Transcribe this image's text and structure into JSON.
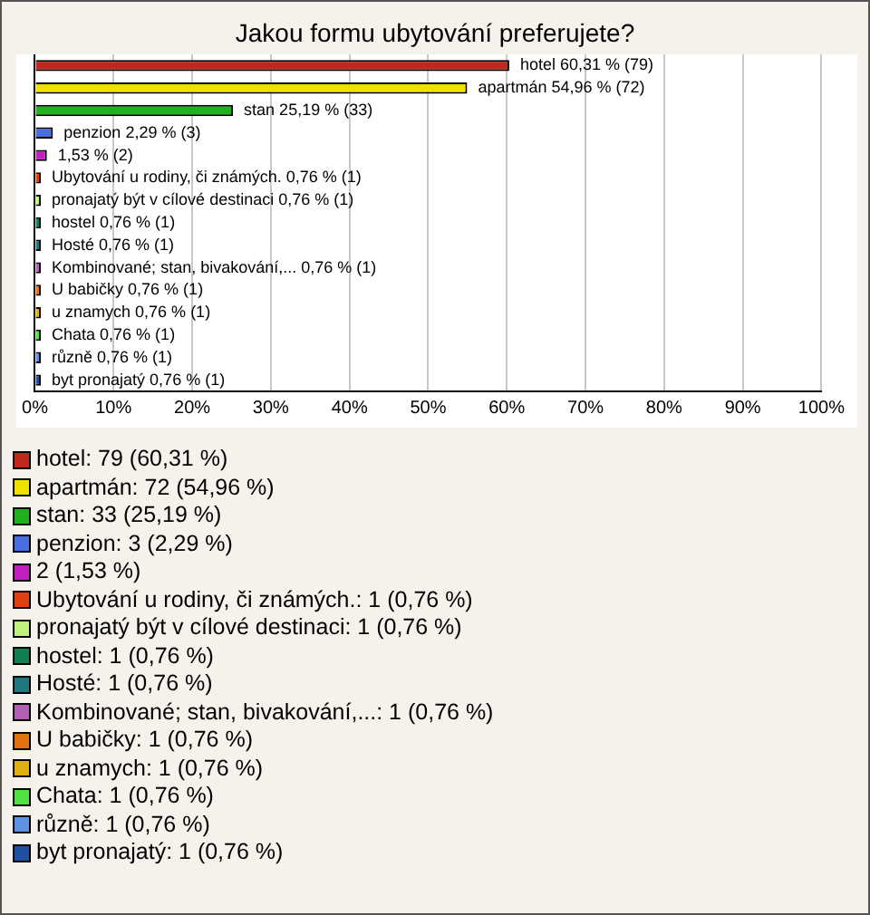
{
  "chart_data": {
    "type": "bar",
    "orientation": "horizontal",
    "stacked": true,
    "title": "Jakou formu ubytování preferujete?",
    "categories": [
      null,
      null,
      null,
      null,
      null,
      null,
      null,
      null,
      null,
      null,
      null,
      null,
      null,
      null,
      null
    ],
    "series": [
      {
        "name": "hotel: 79 (60,31 %)",
        "color": "#c0281c",
        "values": [
          60.31,
          null,
          null,
          null,
          null,
          null,
          null,
          null,
          null,
          null,
          null,
          null,
          null,
          null,
          null
        ],
        "value_labels": [
          "hotel 60,31 % (79)",
          null,
          null,
          null,
          null,
          null,
          null,
          null,
          null,
          null,
          null,
          null,
          null,
          null,
          null
        ]
      },
      {
        "name": "apartmán: 72 (54,96 %)",
        "color": "#f0e000",
        "values": [
          null,
          54.96,
          null,
          null,
          null,
          null,
          null,
          null,
          null,
          null,
          null,
          null,
          null,
          null,
          null
        ],
        "value_labels": [
          null,
          "apartmán 54,96 % (72)",
          null,
          null,
          null,
          null,
          null,
          null,
          null,
          null,
          null,
          null,
          null,
          null,
          null
        ]
      },
      {
        "name": "stan: 33 (25,19 %)",
        "color": "#20b020",
        "values": [
          null,
          null,
          25.19,
          null,
          null,
          null,
          null,
          null,
          null,
          null,
          null,
          null,
          null,
          null,
          null
        ],
        "value_labels": [
          null,
          null,
          "stan 25,19 % (33)",
          null,
          null,
          null,
          null,
          null,
          null,
          null,
          null,
          null,
          null,
          null,
          null
        ]
      },
      {
        "name": "penzion: 3 (2,29 %)",
        "color": "#4a6ee0",
        "values": [
          null,
          null,
          null,
          2.29,
          null,
          null,
          null,
          null,
          null,
          null,
          null,
          null,
          null,
          null,
          null
        ],
        "value_labels": [
          null,
          null,
          null,
          "penzion 2,29 % (3)",
          null,
          null,
          null,
          null,
          null,
          null,
          null,
          null,
          null,
          null,
          null
        ]
      },
      {
        "name": "2 (1,53 %)",
        "color": "#c020c0",
        "values": [
          null,
          null,
          null,
          null,
          1.53,
          null,
          null,
          null,
          null,
          null,
          null,
          null,
          null,
          null,
          null
        ],
        "value_labels": [
          null,
          null,
          null,
          null,
          "1,53 % (2)",
          null,
          null,
          null,
          null,
          null,
          null,
          null,
          null,
          null,
          null
        ]
      },
      {
        "name": "Ubytování u rodiny, či známých.: 1 (0,76 %)",
        "color": "#e04010",
        "values": [
          null,
          null,
          null,
          null,
          null,
          0.76,
          null,
          null,
          null,
          null,
          null,
          null,
          null,
          null,
          null
        ],
        "value_labels": [
          null,
          null,
          null,
          null,
          null,
          "Ubytování u rodiny, či známých. 0,76 % (1)",
          null,
          null,
          null,
          null,
          null,
          null,
          null,
          null,
          null
        ]
      },
      {
        "name": "pronajatý být v cílové destinaci: 1 (0,76 %)",
        "color": "#c0f080",
        "values": [
          null,
          null,
          null,
          null,
          null,
          null,
          0.76,
          null,
          null,
          null,
          null,
          null,
          null,
          null,
          null
        ],
        "value_labels": [
          null,
          null,
          null,
          null,
          null,
          null,
          "pronajatý být v cílové destinaci 0,76 % (1)",
          null,
          null,
          null,
          null,
          null,
          null,
          null,
          null
        ]
      },
      {
        "name": "hostel: 1 (0,76 %)",
        "color": "#108050",
        "values": [
          null,
          null,
          null,
          null,
          null,
          null,
          null,
          0.76,
          null,
          null,
          null,
          null,
          null,
          null,
          null
        ],
        "value_labels": [
          null,
          null,
          null,
          null,
          null,
          null,
          null,
          "hostel 0,76 % (1)",
          null,
          null,
          null,
          null,
          null,
          null,
          null
        ]
      },
      {
        "name": "Hosté: 1 (0,76 %)",
        "color": "#207880",
        "values": [
          null,
          null,
          null,
          null,
          null,
          null,
          null,
          null,
          0.76,
          null,
          null,
          null,
          null,
          null,
          null
        ],
        "value_labels": [
          null,
          null,
          null,
          null,
          null,
          null,
          null,
          null,
          "Hosté 0,76 % (1)",
          null,
          null,
          null,
          null,
          null,
          null
        ]
      },
      {
        "name": "Kombinované; stan, bivakování,...: 1 (0,76 %)",
        "color": "#b060b0",
        "values": [
          null,
          null,
          null,
          null,
          null,
          null,
          null,
          null,
          null,
          0.76,
          null,
          null,
          null,
          null,
          null
        ],
        "value_labels": [
          null,
          null,
          null,
          null,
          null,
          null,
          null,
          null,
          null,
          "Kombinované; stan, bivakování,... 0,76 % (1)",
          null,
          null,
          null,
          null,
          null
        ]
      },
      {
        "name": "U babičky: 1 (0,76 %)",
        "color": "#e07010",
        "values": [
          null,
          null,
          null,
          null,
          null,
          null,
          null,
          null,
          null,
          null,
          0.76,
          null,
          null,
          null,
          null
        ],
        "value_labels": [
          null,
          null,
          null,
          null,
          null,
          null,
          null,
          null,
          null,
          null,
          "U babičky 0,76 % (1)",
          null,
          null,
          null,
          null
        ]
      },
      {
        "name": "u znamych: 1 (0,76 %)",
        "color": "#e0b010",
        "values": [
          null,
          null,
          null,
          null,
          null,
          null,
          null,
          null,
          null,
          null,
          null,
          0.76,
          null,
          null,
          null
        ],
        "value_labels": [
          null,
          null,
          null,
          null,
          null,
          null,
          null,
          null,
          null,
          null,
          null,
          "u znamych 0,76 % (1)",
          null,
          null,
          null
        ]
      },
      {
        "name": "Chata: 1 (0,76 %)",
        "color": "#50e040",
        "values": [
          null,
          null,
          null,
          null,
          null,
          null,
          null,
          null,
          null,
          null,
          null,
          null,
          0.76,
          null,
          null
        ],
        "value_labels": [
          null,
          null,
          null,
          null,
          null,
          null,
          null,
          null,
          null,
          null,
          null,
          null,
          "Chata 0,76 % (1)",
          null,
          null
        ]
      },
      {
        "name": "různě: 1 (0,76 %)",
        "color": "#6090e0",
        "values": [
          null,
          null,
          null,
          null,
          null,
          null,
          null,
          null,
          null,
          null,
          null,
          null,
          null,
          0.76,
          null
        ],
        "value_labels": [
          null,
          null,
          null,
          null,
          null,
          null,
          null,
          null,
          null,
          null,
          null,
          null,
          null,
          "různě 0,76 % (1)",
          null
        ]
      },
      {
        "name": "byt pronajatý: 1 (0,76 %)",
        "color": "#2050a0",
        "values": [
          null,
          null,
          null,
          null,
          null,
          null,
          null,
          null,
          null,
          null,
          null,
          null,
          null,
          null,
          0.76
        ],
        "value_labels": [
          null,
          null,
          null,
          null,
          null,
          null,
          null,
          null,
          null,
          null,
          null,
          null,
          null,
          null,
          "byt pronajatý 0,76 % (1)"
        ]
      }
    ],
    "legend": "bottom",
    "grid": "x",
    "tick_labels": "x",
    "xlim": [
      0,
      100
    ],
    "xticks": [
      {
        "value": 0,
        "label": "0%"
      },
      {
        "value": 10,
        "label": "10%"
      },
      {
        "value": 20,
        "label": "20%"
      },
      {
        "value": 30,
        "label": "30%"
      },
      {
        "value": 40,
        "label": "40%"
      },
      {
        "value": 50,
        "label": "50%"
      },
      {
        "value": 60,
        "label": "60%"
      },
      {
        "value": 70,
        "label": "70%"
      },
      {
        "value": 80,
        "label": "80%"
      },
      {
        "value": 90,
        "label": "90%"
      },
      {
        "value": 100,
        "label": "100%"
      }
    ]
  }
}
